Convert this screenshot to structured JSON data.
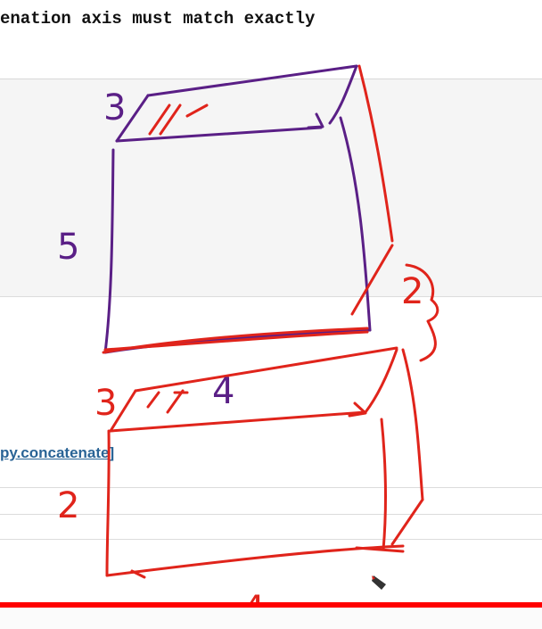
{
  "heading": "enation axis must match exactly",
  "doc_link": "py.concatenate]",
  "annotations": {
    "top_depth": "3",
    "top_height": "5",
    "top_width": "4",
    "bottom_depth": "3",
    "bottom_height": "2",
    "bottom_width": "4",
    "combined_height": "2"
  },
  "colors": {
    "purple_ink": "#5a1f86",
    "red_ink": "#e0241b",
    "progress": "#ff0000",
    "link": "#2a6496"
  },
  "icons": [
    "pen-cursor-icon"
  ]
}
